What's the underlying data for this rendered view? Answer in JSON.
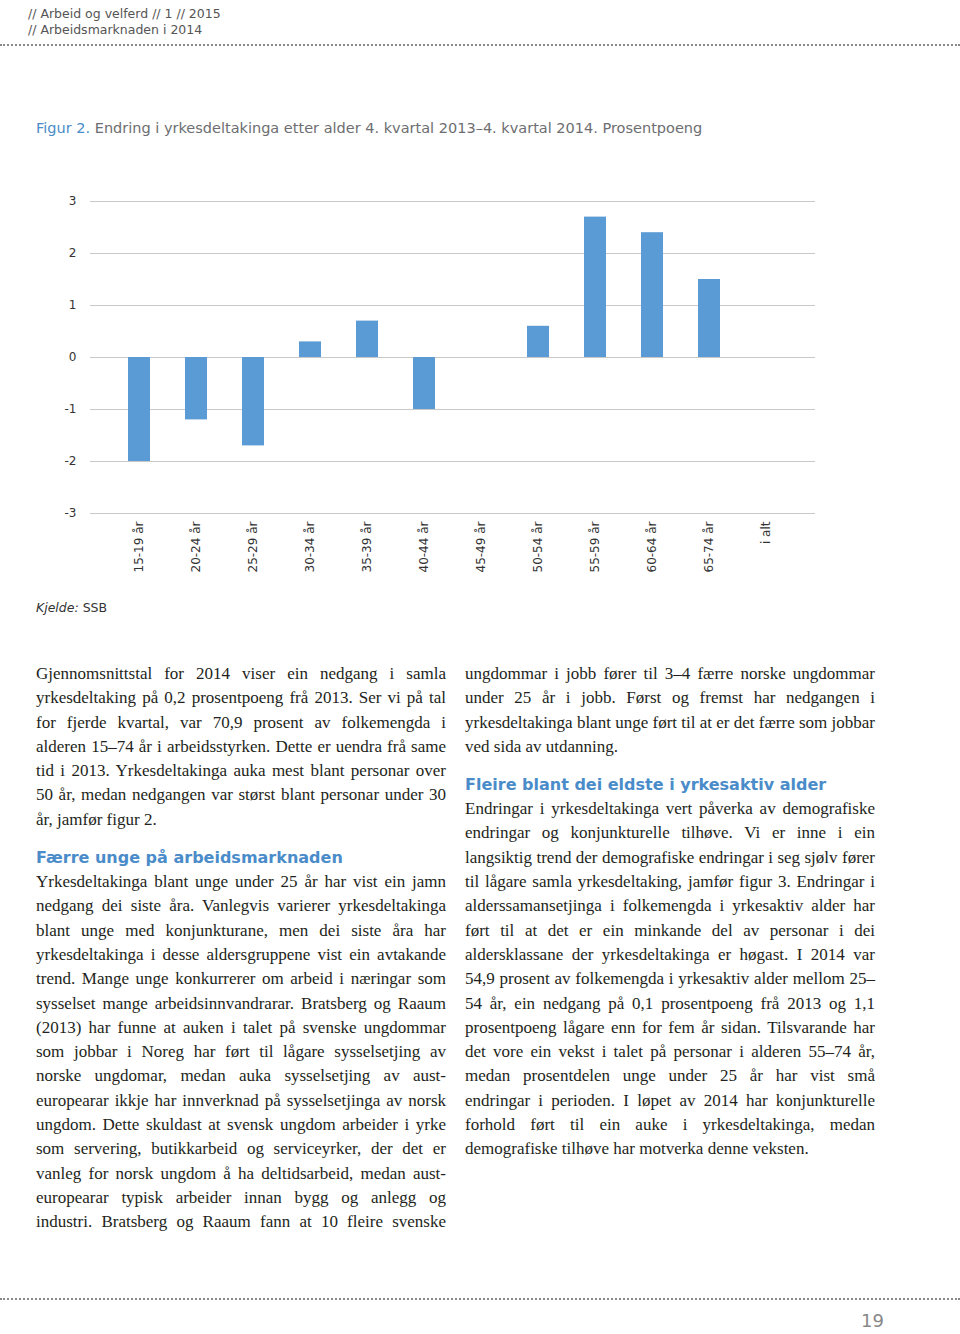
{
  "header": [
    "// Arbeid og velferd // 1 // 2015",
    "// Arbeidsmarknaden i 2014"
  ],
  "figure_label": "Figur 2.",
  "chart_data": {
    "type": "bar",
    "title": "Endring i yrkesdeltakinga etter alder 4. kvartal 2013–4. kvartal 2014. Prosentpoeng",
    "categories": [
      "15-19 år",
      "20-24 år",
      "25-29 år",
      "30-34 år",
      "35-39 år",
      "40-44 år",
      "45-49 år",
      "50-54 år",
      "55-59 år",
      "60-64 år",
      "65-74 år",
      "i alt"
    ],
    "values": [
      -2.0,
      -1.2,
      -1.7,
      0.3,
      0.7,
      -1.0,
      0,
      0.6,
      2.7,
      2.4,
      1.5,
      0
    ],
    "color": "#5b9bd5",
    "ylim": [
      -3,
      3
    ],
    "yticks": [
      -3,
      -2,
      -1,
      0,
      1,
      2,
      3
    ],
    "grid": true
  },
  "source_label": "Kjelde:",
  "source": "SSB",
  "columns": [
    [
      {
        "type": "p",
        "text": "Gjennomsnittstal for 2014 viser ein nedgang i samla yrkesdeltaking på 0,2 prosentpoeng frå 2013. Ser vi på tal for fjerde kvartal, var 70,9 prosent av folkemengda i alderen 15–74 år i arbeidsstyrken. Dette er uendra frå same tid i 2013. Yrkesdeltakinga auka mest blant personar over 50 år, medan nedgangen var størst blant personar under 30 år, jamfør figur 2."
      },
      {
        "type": "h",
        "text": "Færre unge på arbeidsmarknaden"
      },
      {
        "type": "p",
        "text": "Yrkesdeltakinga blant unge under 25 år har vist ein jamn nedgang dei siste åra. Vanlegvis varierer yrkesdeltakinga blant unge med konjunkturane, men dei siste åra har yrkesdeltakinga i desse aldersgruppene vist ein avtakande trend. Mange unge konkurrerer om arbeid i næringar som sysselset mange arbeidsinnvandrarar. Bratsberg og Raaum (2013) har funne at auken i talet på svenske ungdommar som jobbar i Noreg har ført til lågare sysselsetjing av norske ungdomar, medan auka sysselsetjing av aust-europearar ikkje har innverknad på sysselsetjinga av norsk ungdom. Dette skuldast at svensk ungdom arbeider i yrke som servering, butikkarbeid og serviceyrker, der det er vanleg for norsk ungdom å ha deltidsarbeid, medan aust-europearar typisk arbeider innan bygg og anlegg og industri. Bratsberg og Raaum fann at 10 fleire svenske"
      }
    ],
    [
      {
        "type": "p",
        "text": "ungdommar i jobb fører til 3–4 færre norske ungdommar under 25 år i jobb. Først og fremst har nedgangen i yrkesdeltakinga blant unge ført til at er det færre som jobbar ved sida av utdanning."
      },
      {
        "type": "h",
        "text": "Fleire blant dei eldste i yrkesaktiv alder"
      },
      {
        "type": "p",
        "text": "Endringar i yrkesdeltakinga vert påverka av demografiske endringar og konjunkturelle tilhøve. Vi er inne i ein langsiktig trend der demografiske endringar i seg sjølv fører til lågare samla yrkesdeltaking, jamfør figur 3. Endringar i alderssamansetjinga i folkemengda i yrkesaktiv alder har ført til at det er ein minkande del av personar i dei aldersklassane der yrkesdeltakinga er høgast. I 2014 var 54,9 prosent av folkemengda i yrkesaktiv alder mellom 25–54 år, ein nedgang på 0,1 prosentpoeng frå 2013 og 1,1 prosentpoeng lågare enn for fem år sidan. Tilsvarande har det vore ein vekst i talet på personar i alderen 55–74 år, medan prosentdelen unge under 25 år har vist små endringar i perioden. I løpet av 2014 har konjunkturelle forhold ført til ein auke i yrkesdeltakinga, medan demografiske tilhøve har motverka denne veksten."
      }
    ]
  ],
  "page_number": "19"
}
